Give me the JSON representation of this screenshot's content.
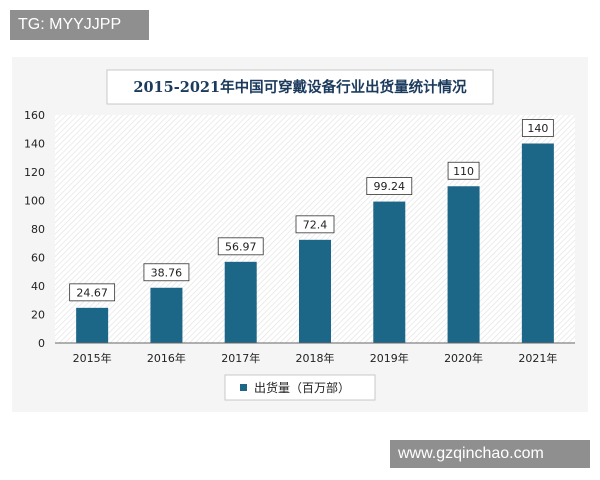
{
  "watermark_top": "TG: MYYJJPP",
  "watermark_bottom": "www.gzqinchao.com",
  "colors": {
    "bar": "#1c6688",
    "title": "#1b3a5c",
    "watermark_bg": "#8f8f8f"
  },
  "chart_data": {
    "type": "bar",
    "title": "2015-2021年中国可穿戴设备行业出货量统计情况",
    "categories": [
      "2015年",
      "2016年",
      "2017年",
      "2018年",
      "2019年",
      "2020年",
      "2021年"
    ],
    "series": [
      {
        "name": "出货量（百万部）",
        "values": [
          24.67,
          38.76,
          56.97,
          72.4,
          99.24,
          110,
          140
        ]
      }
    ],
    "data_labels": [
      "24.67",
      "38.76",
      "56.97",
      "72.4",
      "99.24",
      "110",
      "140"
    ],
    "yticks": [
      "0",
      "20",
      "40",
      "60",
      "80",
      "100",
      "120",
      "140",
      "160"
    ],
    "ylim": [
      0,
      160
    ],
    "grid": false,
    "legend": "bottom"
  }
}
